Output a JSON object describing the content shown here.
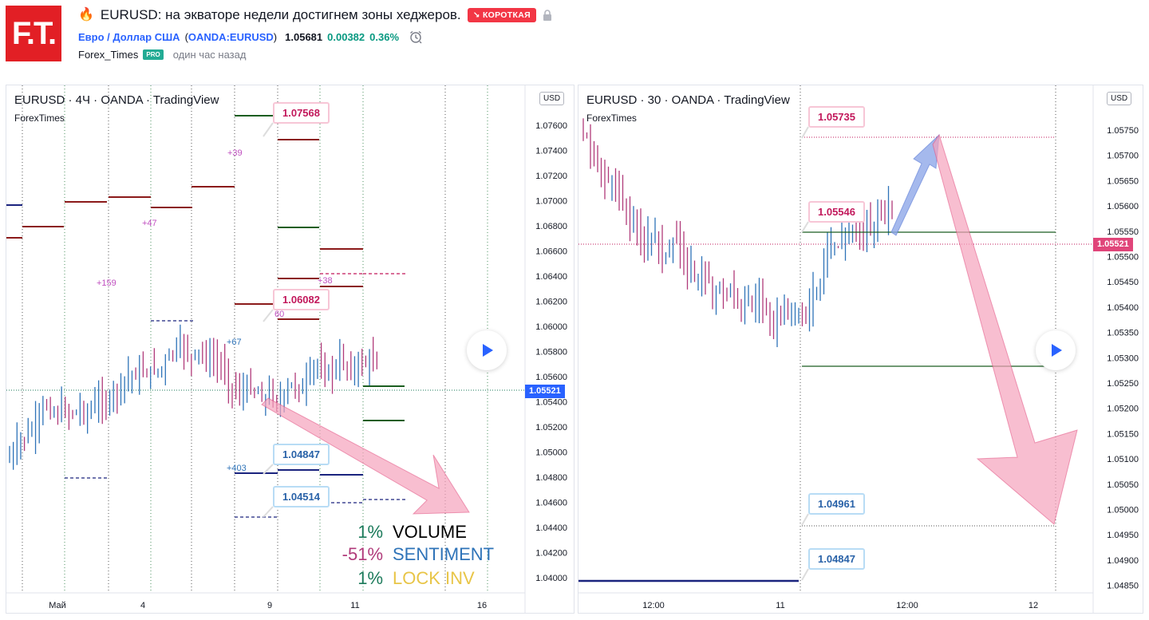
{
  "header": {
    "logo_text": "F.T.",
    "fire_icon": "fire-icon",
    "idea_title": "EURUSD: на экваторе недели достигнем зоны хеджеров.",
    "badge": "↘ КОРОТКАЯ",
    "symbol_name": "Евро / Доллар США",
    "symbol_open": "(",
    "symbol_code": "OANDA:EURUSD",
    "symbol_close": ")",
    "price": "1.05681",
    "change": "0.00382",
    "change_pct": "0.36%",
    "author": "Forex_Times",
    "pro": "PRO",
    "time_ago": "один час назад"
  },
  "colors": {
    "brand_red": "#e21f25",
    "short_red": "#f23645",
    "up_green": "#089981",
    "link_blue": "#2962ff",
    "candle_pink": "#b03a7a",
    "candle_blue": "#2e73b8",
    "arrow_pink": "#f5a3bc",
    "arrow_blue": "#8fa7e8"
  },
  "left_chart": {
    "legend": "EURUSD · 4Ч · OANDA · TradingView",
    "legend_sub": "ForexTimes",
    "currency": "USD",
    "price_tag": "1.05521",
    "price_axis": [
      "1.07600",
      "1.07400",
      "1.07200",
      "1.07000",
      "1.06800",
      "1.06600",
      "1.06400",
      "1.06200",
      "1.06000",
      "1.05800",
      "1.05600",
      "1.05400",
      "1.05200",
      "1.05000",
      "1.04800",
      "1.04600",
      "1.04400",
      "1.04200",
      "1.04000"
    ],
    "time_axis": [
      "Май",
      "4",
      "9",
      "11",
      "16"
    ],
    "callouts": [
      "1.07568",
      "1.06082",
      "1.04847",
      "1.04514"
    ],
    "level_labels": [
      "+39",
      "+47",
      "+159",
      "+38",
      "60",
      "+67",
      "+403"
    ],
    "stats": [
      {
        "pct": "1%",
        "label": "VOLUME"
      },
      {
        "pct": "-51%",
        "label": "SENTIMENT"
      },
      {
        "pct": "1%",
        "label": "LOCK INV"
      }
    ]
  },
  "right_chart": {
    "legend": "EURUSD · 30 · OANDA · TradingView",
    "legend_sub": "ForexTimes",
    "currency": "USD",
    "price_tag": "1.05521",
    "price_axis": [
      "1.05750",
      "1.05700",
      "1.05650",
      "1.05600",
      "1.05550",
      "1.05500",
      "1.05450",
      "1.05400",
      "1.05350",
      "1.05300",
      "1.05250",
      "1.05200",
      "1.05150",
      "1.05100",
      "1.05050",
      "1.05000",
      "1.04950",
      "1.04900",
      "1.04850"
    ],
    "time_axis": [
      "12:00",
      "11",
      "12:00",
      "12"
    ],
    "callouts": [
      "1.05735",
      "1.05546",
      "1.04961",
      "1.04847"
    ]
  }
}
